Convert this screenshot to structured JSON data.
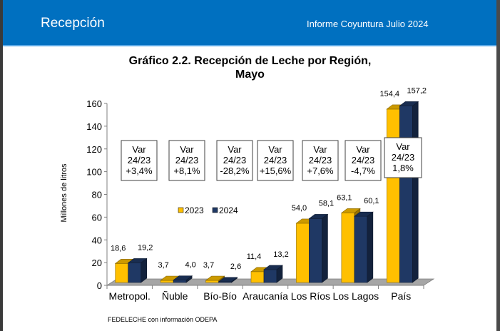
{
  "header": {
    "section_title": "Recepción",
    "report_title": "Informe Coyuntura Julio 2024"
  },
  "chart_data": {
    "type": "bar",
    "title_line1": "Gráfico 2.2. Recepción de Leche por Región,",
    "title_line2": "Mayo",
    "xlabel": "",
    "ylabel": "Millones de litros",
    "ylim": [
      0,
      160
    ],
    "yticks": [
      0,
      20,
      40,
      60,
      80,
      100,
      120,
      140,
      160
    ],
    "categories": [
      "Metropol.",
      "Ñuble",
      "Bío-Bío",
      "Araucanía",
      "Los Ríos",
      "Los Lagos",
      "País"
    ],
    "series": [
      {
        "name": "2023",
        "color": "#ffc000",
        "values": [
          18.6,
          3.7,
          3.7,
          11.4,
          54.0,
          63.1,
          154.4
        ],
        "labels": [
          "18,6",
          "3,7",
          "3,7",
          "11,4",
          "54,0",
          "63,1",
          "154,4"
        ]
      },
      {
        "name": "2024",
        "color": "#1f3864",
        "values": [
          19.2,
          4.0,
          2.6,
          13.2,
          58.1,
          60.1,
          157.2
        ],
        "labels": [
          "19,2",
          "4,0",
          "2,6",
          "13,2",
          "58,1",
          "60,1",
          "157,2"
        ]
      }
    ],
    "variation_boxes": [
      {
        "line1": "Var",
        "line2": "24/23",
        "line3": "+3,4%"
      },
      {
        "line1": "Var",
        "line2": "24/23",
        "line3": "+8,1%"
      },
      {
        "line1": "Var",
        "line2": "24/23",
        "line3": "-28,2%"
      },
      {
        "line1": "Var",
        "line2": "24/23",
        "line3": "+15,6%"
      },
      {
        "line1": "Var",
        "line2": "24/23",
        "line3": "+7,6%"
      },
      {
        "line1": "Var",
        "line2": "24/23",
        "line3": "-4,7%"
      },
      {
        "line1": "Var",
        "line2": "24/23",
        "line3": "1,8%"
      }
    ],
    "legend": {
      "position": "center",
      "entries": [
        "2023",
        "2024"
      ]
    },
    "grid": false
  },
  "source": "FEDELECHE con información ODEPA"
}
